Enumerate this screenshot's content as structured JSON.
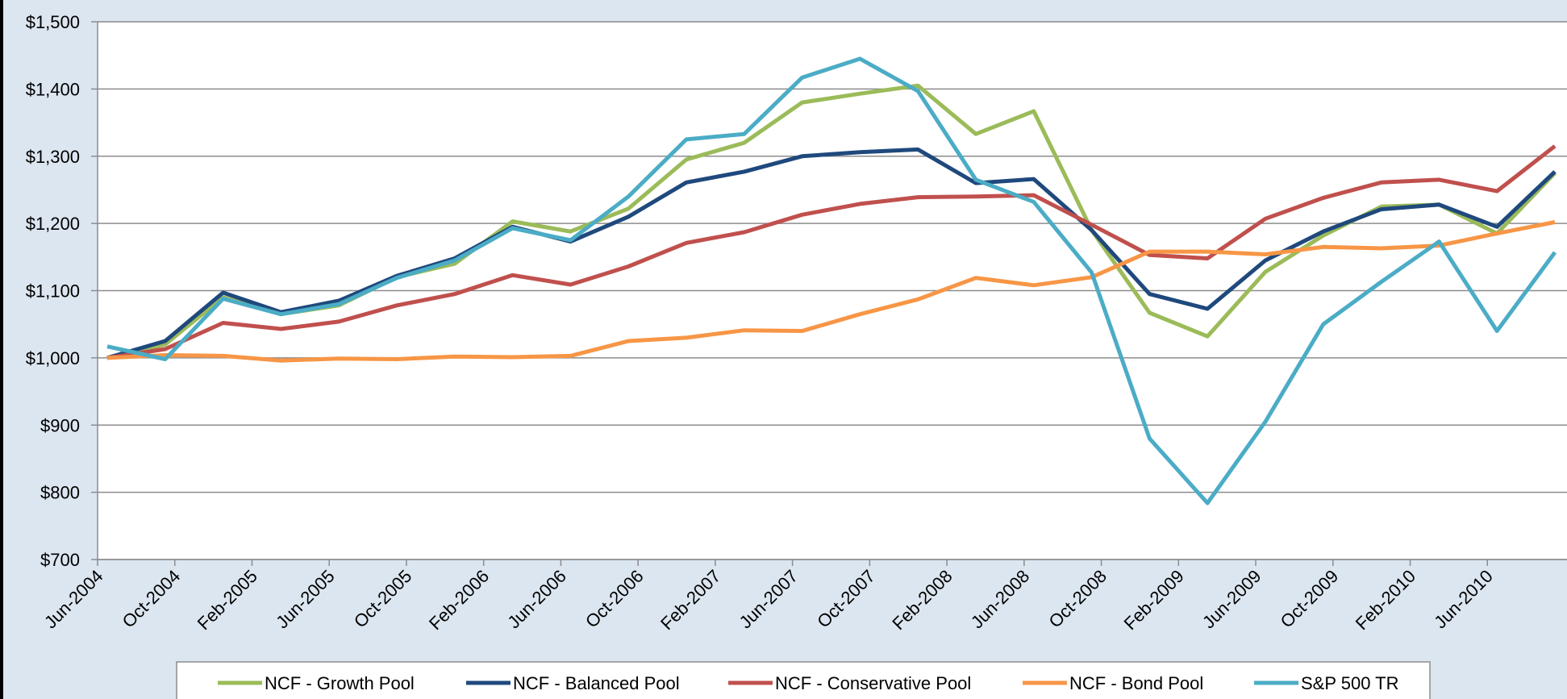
{
  "chart_data": {
    "type": "line",
    "x": [
      "Jun-2004",
      "Sep-2004",
      "Dec-2004",
      "Mar-2005",
      "Jun-2005",
      "Sep-2005",
      "Dec-2005",
      "Mar-2006",
      "Jun-2006",
      "Sep-2006",
      "Dec-2006",
      "Mar-2007",
      "Jun-2007",
      "Sep-2007",
      "Dec-2007",
      "Mar-2008",
      "Jun-2008",
      "Sep-2008",
      "Dec-2008",
      "Mar-2009",
      "Jun-2009",
      "Sep-2009",
      "Dec-2009",
      "Mar-2010",
      "Jun-2010",
      "Sep-2010"
    ],
    "xlim": [
      "Jun-2004",
      "Sep-2010"
    ],
    "xticks": [
      "Jun-2004",
      "Oct-2004",
      "Feb-2005",
      "Jun-2005",
      "Oct-2005",
      "Feb-2006",
      "Jun-2006",
      "Oct-2006",
      "Feb-2007",
      "Jun-2007",
      "Oct-2007",
      "Feb-2008",
      "Jun-2008",
      "Oct-2008",
      "Feb-2009",
      "Jun-2009",
      "Oct-2009",
      "Feb-2010",
      "Jun-2010"
    ],
    "ylim": [
      700,
      1500
    ],
    "yticks": [
      {
        "value": 700,
        "label": "$700"
      },
      {
        "value": 800,
        "label": "$800"
      },
      {
        "value": 900,
        "label": "$900"
      },
      {
        "value": 1000,
        "label": "$1,000"
      },
      {
        "value": 1100,
        "label": "$1,100"
      },
      {
        "value": 1200,
        "label": "$1,200"
      },
      {
        "value": 1300,
        "label": "$1,300"
      },
      {
        "value": 1400,
        "label": "$1,400"
      },
      {
        "value": 1500,
        "label": "$1,500"
      }
    ],
    "grid": true,
    "legend": "bottom",
    "series": [
      {
        "name": "NCF - Growth Pool",
        "color": "#9bbb59",
        "values": [
          1000,
          1020,
          1090,
          1065,
          1078,
          1120,
          1140,
          1203,
          1188,
          1222,
          1295,
          1320,
          1380,
          1393,
          1405,
          1333,
          1367,
          1190,
          1067,
          1032,
          1128,
          1182,
          1225,
          1228,
          1185,
          1275
        ]
      },
      {
        "name": "NCF - Balanced Pool",
        "color": "#1f497d",
        "values": [
          1000,
          1025,
          1097,
          1068,
          1085,
          1122,
          1148,
          1195,
          1173,
          1210,
          1261,
          1277,
          1300,
          1306,
          1310,
          1260,
          1266,
          1190,
          1095,
          1073,
          1145,
          1188,
          1221,
          1228,
          1195,
          1277
        ]
      },
      {
        "name": "NCF - Conservative Pool",
        "color": "#c0504d",
        "values": [
          1000,
          1013,
          1052,
          1043,
          1054,
          1078,
          1095,
          1123,
          1109,
          1136,
          1171,
          1187,
          1213,
          1229,
          1239,
          1240,
          1242,
          1198,
          1153,
          1148,
          1207,
          1238,
          1261,
          1265,
          1248,
          1315
        ]
      },
      {
        "name": "NCF - Bond Pool",
        "color": "#f79646",
        "values": [
          1000,
          1004,
          1003,
          996,
          999,
          998,
          1002,
          1001,
          1003,
          1025,
          1030,
          1041,
          1040,
          1065,
          1087,
          1119,
          1108,
          1120,
          1158,
          1158,
          1154,
          1165,
          1163,
          1167,
          1185,
          1202
        ]
      },
      {
        "name": "S&P 500 TR",
        "color": "#4bacc6",
        "values": [
          1017,
          998,
          1088,
          1065,
          1080,
          1119,
          1145,
          1193,
          1175,
          1240,
          1325,
          1333,
          1417,
          1445,
          1397,
          1265,
          1232,
          1127,
          880,
          784,
          905,
          1050,
          1113,
          1173,
          1040,
          1157
        ]
      }
    ]
  }
}
